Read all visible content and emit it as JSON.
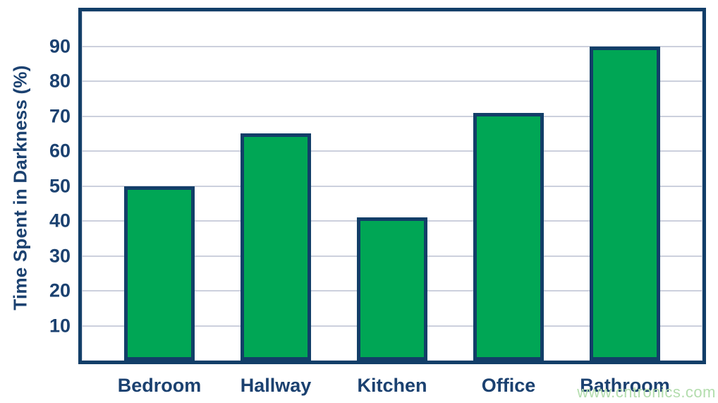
{
  "page": {
    "background": "#ffffff",
    "watermark": "www.cntronics.com"
  },
  "chart_data": {
    "type": "bar",
    "title": "",
    "categories": [
      "Bedroom",
      "Hallway",
      "Kitchen",
      "Office",
      "Bathroom"
    ],
    "values": [
      50,
      65,
      41,
      71,
      90
    ],
    "xlabel": "",
    "ylabel": "Time Spent in Darkness (%)",
    "ylim": [
      0,
      100
    ],
    "yticks": [
      10,
      20,
      30,
      40,
      50,
      60,
      70,
      80,
      90
    ],
    "grid": true,
    "legend": false,
    "colors": {
      "bar_fill": "#00a655",
      "bar_border": "#123e68",
      "plot_border": "#123e68",
      "gridline": "#ccd0dd",
      "label_text": "#1b4170",
      "watermark_text": "#b3ddad"
    }
  }
}
